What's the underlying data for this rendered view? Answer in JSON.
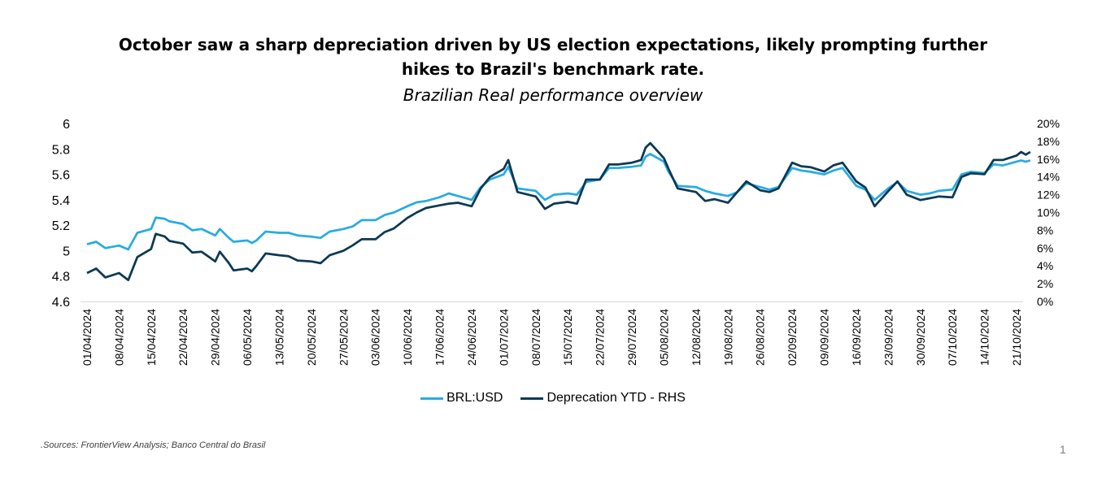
{
  "title_line1": "October saw a sharp depreciation driven by US election expectations, likely prompting further",
  "title_line2": "hikes to Brazil's benchmark rate.",
  "subtitle": "Brazilian Real performance overview",
  "source": ".Sources: FrontierView Analysis; Banco Central do Brasil",
  "page_number": "1",
  "colors": {
    "brl": "#29abe2",
    "dep": "#0b3954"
  },
  "chart_data": {
    "type": "line",
    "title": "October saw a sharp depreciation driven by US election expectations, likely prompting further hikes to Brazil's benchmark rate.",
    "subtitle": "Brazilian Real performance overview",
    "x_tick_labels": [
      "01/04/2024",
      "08/04/2024",
      "15/04/2024",
      "22/04/2024",
      "29/04/2024",
      "06/05/2024",
      "13/05/2024",
      "20/05/2024",
      "27/05/2024",
      "03/06/2024",
      "10/06/2024",
      "17/06/2024",
      "24/06/2024",
      "01/07/2024",
      "08/07/2024",
      "15/07/2024",
      "22/07/2024",
      "29/07/2024",
      "05/08/2024",
      "12/08/2024",
      "19/08/2024",
      "26/08/2024",
      "02/09/2024",
      "09/09/2024",
      "16/09/2024",
      "23/09/2024",
      "30/09/2024",
      "07/10/2024",
      "14/10/2024",
      "21/10/2024"
    ],
    "y_left": {
      "lim": [
        4.6,
        6.0
      ],
      "ticks": [
        "4.6",
        "4.8",
        "5",
        "5.2",
        "5.4",
        "5.6",
        "5.8",
        "6"
      ]
    },
    "y_right": {
      "lim": [
        0,
        20
      ],
      "ticks": [
        "0%",
        "2%",
        "4%",
        "6%",
        "8%",
        "10%",
        "12%",
        "14%",
        "16%",
        "18%",
        "20%"
      ]
    },
    "legend_position": "bottom",
    "grid": false,
    "series": [
      {
        "name": "BRL:USD",
        "axis": "left",
        "points": [
          [
            "01/04/2024",
            5.05
          ],
          [
            "03/04/2024",
            5.07
          ],
          [
            "05/04/2024",
            5.02
          ],
          [
            "08/04/2024",
            5.04
          ],
          [
            "10/04/2024",
            5.01
          ],
          [
            "12/04/2024",
            5.14
          ],
          [
            "15/04/2024",
            5.17
          ],
          [
            "16/04/2024",
            5.26
          ],
          [
            "18/04/2024",
            5.25
          ],
          [
            "19/04/2024",
            5.23
          ],
          [
            "22/04/2024",
            5.21
          ],
          [
            "24/04/2024",
            5.16
          ],
          [
            "26/04/2024",
            5.17
          ],
          [
            "29/04/2024",
            5.12
          ],
          [
            "30/04/2024",
            5.17
          ],
          [
            "02/05/2024",
            5.1
          ],
          [
            "03/05/2024",
            5.07
          ],
          [
            "06/05/2024",
            5.08
          ],
          [
            "07/05/2024",
            5.06
          ],
          [
            "08/05/2024",
            5.08
          ],
          [
            "10/05/2024",
            5.15
          ],
          [
            "13/05/2024",
            5.14
          ],
          [
            "15/05/2024",
            5.14
          ],
          [
            "17/05/2024",
            5.12
          ],
          [
            "20/05/2024",
            5.11
          ],
          [
            "22/05/2024",
            5.1
          ],
          [
            "24/05/2024",
            5.15
          ],
          [
            "27/05/2024",
            5.17
          ],
          [
            "29/05/2024",
            5.19
          ],
          [
            "31/05/2024",
            5.24
          ],
          [
            "03/06/2024",
            5.24
          ],
          [
            "05/06/2024",
            5.28
          ],
          [
            "07/06/2024",
            5.3
          ],
          [
            "10/06/2024",
            5.35
          ],
          [
            "12/06/2024",
            5.38
          ],
          [
            "14/06/2024",
            5.39
          ],
          [
            "17/06/2024",
            5.42
          ],
          [
            "19/06/2024",
            5.45
          ],
          [
            "21/06/2024",
            5.43
          ],
          [
            "24/06/2024",
            5.4
          ],
          [
            "26/06/2024",
            5.5
          ],
          [
            "28/06/2024",
            5.56
          ],
          [
            "01/07/2024",
            5.6
          ],
          [
            "02/07/2024",
            5.66
          ],
          [
            "04/07/2024",
            5.49
          ],
          [
            "08/07/2024",
            5.47
          ],
          [
            "10/07/2024",
            5.4
          ],
          [
            "12/07/2024",
            5.44
          ],
          [
            "15/07/2024",
            5.45
          ],
          [
            "17/07/2024",
            5.44
          ],
          [
            "19/07/2024",
            5.54
          ],
          [
            "22/07/2024",
            5.56
          ],
          [
            "24/07/2024",
            5.65
          ],
          [
            "26/07/2024",
            5.65
          ],
          [
            "29/07/2024",
            5.66
          ],
          [
            "31/07/2024",
            5.67
          ],
          [
            "01/08/2024",
            5.74
          ],
          [
            "02/08/2024",
            5.76
          ],
          [
            "05/08/2024",
            5.7
          ],
          [
            "06/08/2024",
            5.62
          ],
          [
            "08/08/2024",
            5.51
          ],
          [
            "12/08/2024",
            5.5
          ],
          [
            "14/08/2024",
            5.47
          ],
          [
            "16/08/2024",
            5.45
          ],
          [
            "19/08/2024",
            5.43
          ],
          [
            "21/08/2024",
            5.46
          ],
          [
            "23/08/2024",
            5.53
          ],
          [
            "26/08/2024",
            5.5
          ],
          [
            "28/08/2024",
            5.48
          ],
          [
            "30/08/2024",
            5.5
          ],
          [
            "02/09/2024",
            5.65
          ],
          [
            "04/09/2024",
            5.63
          ],
          [
            "06/09/2024",
            5.62
          ],
          [
            "09/09/2024",
            5.6
          ],
          [
            "11/09/2024",
            5.63
          ],
          [
            "13/09/2024",
            5.65
          ],
          [
            "16/09/2024",
            5.51
          ],
          [
            "18/09/2024",
            5.48
          ],
          [
            "20/09/2024",
            5.4
          ],
          [
            "23/09/2024",
            5.49
          ],
          [
            "25/09/2024",
            5.54
          ],
          [
            "27/09/2024",
            5.47
          ],
          [
            "30/09/2024",
            5.44
          ],
          [
            "02/10/2024",
            5.45
          ],
          [
            "04/10/2024",
            5.47
          ],
          [
            "07/10/2024",
            5.48
          ],
          [
            "09/10/2024",
            5.6
          ],
          [
            "11/10/2024",
            5.62
          ],
          [
            "14/10/2024",
            5.61
          ],
          [
            "16/10/2024",
            5.68
          ],
          [
            "18/10/2024",
            5.67
          ],
          [
            "21/10/2024",
            5.7
          ],
          [
            "22/10/2024",
            5.71
          ],
          [
            "23/10/2024",
            5.7
          ],
          [
            "24/10/2024",
            5.71
          ]
        ]
      },
      {
        "name": "Deprecation YTD - RHS",
        "axis": "right",
        "points": [
          [
            "01/04/2024",
            3.2
          ],
          [
            "03/04/2024",
            3.7
          ],
          [
            "05/04/2024",
            2.7
          ],
          [
            "08/04/2024",
            3.2
          ],
          [
            "10/04/2024",
            2.4
          ],
          [
            "12/04/2024",
            5.0
          ],
          [
            "15/04/2024",
            5.9
          ],
          [
            "16/04/2024",
            7.6
          ],
          [
            "18/04/2024",
            7.3
          ],
          [
            "19/04/2024",
            6.8
          ],
          [
            "22/04/2024",
            6.5
          ],
          [
            "24/04/2024",
            5.5
          ],
          [
            "26/04/2024",
            5.6
          ],
          [
            "29/04/2024",
            4.5
          ],
          [
            "30/04/2024",
            5.6
          ],
          [
            "02/05/2024",
            4.3
          ],
          [
            "03/05/2024",
            3.5
          ],
          [
            "06/05/2024",
            3.7
          ],
          [
            "07/05/2024",
            3.4
          ],
          [
            "08/05/2024",
            4.0
          ],
          [
            "10/05/2024",
            5.4
          ],
          [
            "13/05/2024",
            5.2
          ],
          [
            "15/05/2024",
            5.1
          ],
          [
            "17/05/2024",
            4.6
          ],
          [
            "20/05/2024",
            4.5
          ],
          [
            "22/05/2024",
            4.3
          ],
          [
            "24/05/2024",
            5.2
          ],
          [
            "27/05/2024",
            5.7
          ],
          [
            "29/05/2024",
            6.3
          ],
          [
            "31/05/2024",
            7.0
          ],
          [
            "03/06/2024",
            7.0
          ],
          [
            "05/06/2024",
            7.8
          ],
          [
            "07/06/2024",
            8.2
          ],
          [
            "10/06/2024",
            9.4
          ],
          [
            "12/06/2024",
            10.0
          ],
          [
            "14/06/2024",
            10.5
          ],
          [
            "17/06/2024",
            10.8
          ],
          [
            "19/06/2024",
            11.0
          ],
          [
            "21/06/2024",
            11.1
          ],
          [
            "24/06/2024",
            10.7
          ],
          [
            "26/06/2024",
            12.7
          ],
          [
            "28/06/2024",
            14.0
          ],
          [
            "01/07/2024",
            14.9
          ],
          [
            "02/07/2024",
            15.9
          ],
          [
            "04/07/2024",
            12.3
          ],
          [
            "08/07/2024",
            11.8
          ],
          [
            "10/07/2024",
            10.4
          ],
          [
            "12/07/2024",
            11.0
          ],
          [
            "15/07/2024",
            11.2
          ],
          [
            "17/07/2024",
            11.0
          ],
          [
            "19/07/2024",
            13.7
          ],
          [
            "22/07/2024",
            13.7
          ],
          [
            "24/07/2024",
            15.4
          ],
          [
            "26/07/2024",
            15.4
          ],
          [
            "29/07/2024",
            15.6
          ],
          [
            "31/07/2024",
            15.9
          ],
          [
            "01/08/2024",
            17.3
          ],
          [
            "02/08/2024",
            17.8
          ],
          [
            "05/08/2024",
            16.1
          ],
          [
            "06/08/2024",
            14.9
          ],
          [
            "08/08/2024",
            12.7
          ],
          [
            "12/08/2024",
            12.3
          ],
          [
            "14/08/2024",
            11.3
          ],
          [
            "16/08/2024",
            11.5
          ],
          [
            "19/08/2024",
            11.1
          ],
          [
            "21/08/2024",
            12.3
          ],
          [
            "23/08/2024",
            13.5
          ],
          [
            "26/08/2024",
            12.5
          ],
          [
            "28/08/2024",
            12.3
          ],
          [
            "30/08/2024",
            12.7
          ],
          [
            "02/09/2024",
            15.6
          ],
          [
            "04/09/2024",
            15.2
          ],
          [
            "06/09/2024",
            15.1
          ],
          [
            "09/09/2024",
            14.6
          ],
          [
            "11/09/2024",
            15.3
          ],
          [
            "13/09/2024",
            15.6
          ],
          [
            "16/09/2024",
            13.5
          ],
          [
            "18/09/2024",
            12.8
          ],
          [
            "20/09/2024",
            10.7
          ],
          [
            "23/09/2024",
            12.4
          ],
          [
            "25/09/2024",
            13.5
          ],
          [
            "27/09/2024",
            12.0
          ],
          [
            "30/09/2024",
            11.4
          ],
          [
            "02/10/2024",
            11.6
          ],
          [
            "04/10/2024",
            11.8
          ],
          [
            "07/10/2024",
            11.7
          ],
          [
            "09/10/2024",
            14.0
          ],
          [
            "11/10/2024",
            14.4
          ],
          [
            "14/10/2024",
            14.3
          ],
          [
            "16/10/2024",
            15.9
          ],
          [
            "18/10/2024",
            15.9
          ],
          [
            "21/10/2024",
            16.4
          ],
          [
            "22/10/2024",
            16.8
          ],
          [
            "23/10/2024",
            16.5
          ],
          [
            "24/10/2024",
            16.8
          ]
        ]
      }
    ]
  }
}
